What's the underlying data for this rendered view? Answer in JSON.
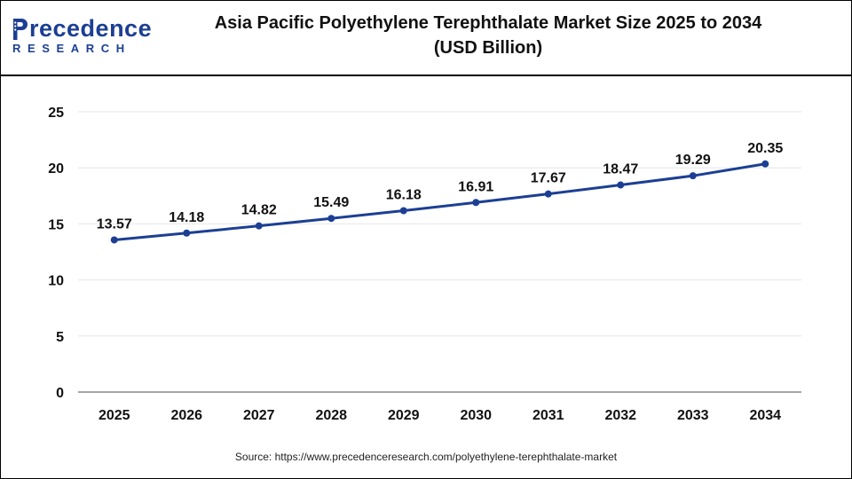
{
  "logo": {
    "brand_text": "recedence",
    "sub_text": "RESEARCH"
  },
  "header": {
    "title": "Asia Pacific Polyethylene Terephthalate Market Size 2025 to 2034",
    "subtitle": "(USD Billion)"
  },
  "footer": {
    "source": "Source: https://www.precedenceresearch.com/polyethylene-terephthalate-market"
  },
  "colors": {
    "line": "#1c3f94",
    "marker": "#1c3f94",
    "grid": "#e6e6e6",
    "axis": "#888888",
    "text": "#111111"
  },
  "chart_data": {
    "type": "line",
    "title": "Asia Pacific Polyethylene Terephthalate Market Size 2025 to 2034 (USD Billion)",
    "xlabel": "",
    "ylabel": "",
    "categories": [
      "2025",
      "2026",
      "2027",
      "2028",
      "2029",
      "2030",
      "2031",
      "2032",
      "2033",
      "2034"
    ],
    "series": [
      {
        "values": [
          13.57,
          14.18,
          14.82,
          15.49,
          16.18,
          16.91,
          17.67,
          18.47,
          19.29,
          20.35
        ],
        "labels": [
          "13.57",
          "14.18",
          "14.82",
          "15.49",
          "16.18",
          "16.91",
          "17.67",
          "18.47",
          "19.29",
          "20.35"
        ]
      }
    ],
    "ylim": [
      0,
      25
    ],
    "yticks": [
      "0",
      "5",
      "10",
      "15",
      "20",
      "25"
    ],
    "grid": true,
    "legend": "none"
  }
}
